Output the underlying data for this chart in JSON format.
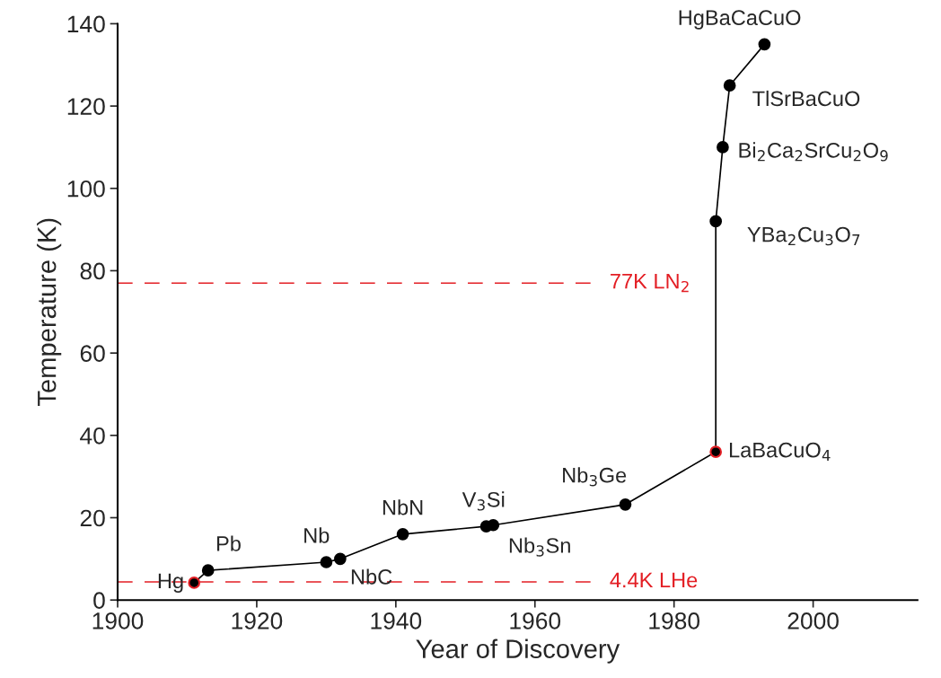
{
  "chart_data": {
    "type": "line",
    "xlabel": "Year of Discovery",
    "ylabel": "Temperature (K)",
    "xlim": [
      1900,
      2015
    ],
    "xticks": [
      1900,
      1920,
      1940,
      1960,
      1980,
      2000
    ],
    "ylim": [
      0,
      140
    ],
    "yticks": [
      0,
      20,
      40,
      60,
      80,
      100,
      120,
      140
    ],
    "grid": false,
    "marker": "circle",
    "line_style": "solid",
    "series": [
      {
        "color": "#000000",
        "x": [
          1911,
          1913,
          1930,
          1932,
          1941,
          1953,
          1954,
          1973,
          1986,
          1986,
          1987,
          1988,
          1993
        ],
        "values": [
          4.2,
          7.2,
          9.2,
          10,
          16,
          17.9,
          18.2,
          23.2,
          36,
          92,
          110,
          125,
          135
        ],
        "colors": [
          "#e31e24",
          "#000000",
          "#000000",
          "#000000",
          "#000000",
          "#000000",
          "#000000",
          "#000000",
          "#e31e24",
          "#000000",
          "#000000",
          "#000000",
          "#000000"
        ]
      }
    ],
    "annotations": [
      {
        "text": "Hg",
        "x": 1911,
        "y": 4.2
      },
      {
        "text": "Pb",
        "x": 1913,
        "y": 7.2
      },
      {
        "text": "Nb",
        "x": 1930,
        "y": 9.2
      },
      {
        "text": "NbC",
        "x": 1932,
        "y": 10
      },
      {
        "text": "NbN",
        "x": 1941,
        "y": 16
      },
      {
        "text": "V$_{3}$Si",
        "x": 1953,
        "y": 17.9
      },
      {
        "text": "Nb$_{3}$Sn",
        "x": 1954,
        "y": 18.2
      },
      {
        "text": "Nb$_{3}$Ge",
        "x": 1973,
        "y": 23.2
      },
      {
        "text": "LaBaCuO$_{4}$",
        "x": 1986,
        "y": 36
      },
      {
        "text": "YBa$_{2}$Cu$_{3}$O$_{7}$",
        "x": 1986,
        "y": 92
      },
      {
        "text": "Bi$_{2}$Ca$_{2}$SrCu$_{2}$O$_{9}$",
        "x": 1987,
        "y": 110
      },
      {
        "text": "TlSrBaCuO",
        "x": 1988,
        "y": 125
      },
      {
        "text": "HgBaCaCuO",
        "x": 1993,
        "y": 135
      }
    ],
    "ref_lines": [
      {
        "axis": "y",
        "value": 77,
        "label": "77K LN$_{2}$",
        "color": "#e31e24",
        "line_style": "dashed"
      },
      {
        "axis": "y",
        "value": 4.4,
        "label": "4.4K LHe",
        "color": "#e31e24",
        "line_style": "dashed"
      }
    ]
  }
}
